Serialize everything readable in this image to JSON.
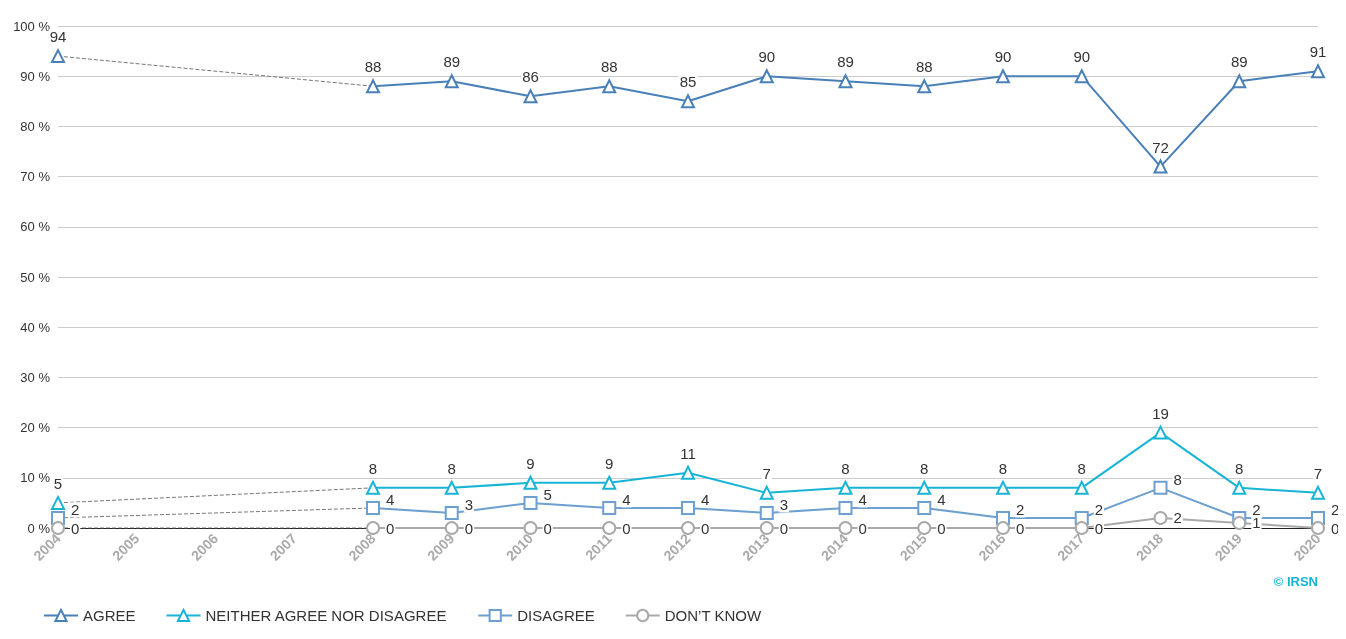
{
  "chart_data": {
    "type": "line",
    "categories": [
      "2004",
      "2005",
      "2006",
      "2007",
      "2008",
      "2009",
      "2010",
      "2011",
      "2012",
      "2013",
      "2014",
      "2015",
      "2016",
      "2017",
      "2018",
      "2019",
      "2020"
    ],
    "series": [
      {
        "name": "AGREE",
        "color": "#4a80b8",
        "marker": "triangle",
        "values": [
          94,
          null,
          null,
          null,
          88,
          89,
          86,
          88,
          85,
          90,
          89,
          88,
          90,
          90,
          72,
          89,
          91
        ]
      },
      {
        "name": "NEITHER AGREE NOR DISAGREE",
        "color": "#18b4d6",
        "marker": "triangle",
        "values": [
          5,
          null,
          null,
          null,
          8,
          8,
          9,
          9,
          11,
          7,
          8,
          8,
          8,
          8,
          19,
          8,
          7
        ]
      },
      {
        "name": "DISAGREE",
        "color": "#6d9fcf",
        "marker": "square",
        "values": [
          2,
          null,
          null,
          null,
          4,
          3,
          5,
          4,
          4,
          3,
          4,
          4,
          2,
          2,
          8,
          2,
          2
        ]
      },
      {
        "name": "DON’T KNOW",
        "color": "#a9a9a9",
        "marker": "circle",
        "values": [
          0,
          null,
          null,
          null,
          0,
          0,
          0,
          0,
          0,
          0,
          0,
          0,
          0,
          0,
          2,
          1,
          0
        ]
      },
      {
        "type": "line",
        "line_style": "dashed",
        "color": "#777777",
        "value_labels": [
          null,
          null,
          null,
          null,
          null,
          null,
          null,
          null,
          null,
          null,
          null,
          null,
          null,
          null,
          null,
          null,
          null
        ],
        "values": [
          94,
          null,
          null,
          null,
          88,
          null,
          null,
          null,
          null,
          null,
          null,
          null,
          null,
          null,
          null,
          null,
          null
        ]
      },
      {
        "type": "line",
        "line_style": "dashed",
        "color": "#777777",
        "value_labels": [
          null,
          null,
          null,
          null,
          null,
          null,
          null,
          null,
          null,
          null,
          null,
          null,
          null,
          null,
          null,
          null,
          null
        ],
        "values": [
          5,
          null,
          null,
          null,
          8,
          null,
          null,
          null,
          null,
          null,
          null,
          null,
          null,
          null,
          null,
          null,
          null
        ]
      },
      {
        "type": "line",
        "line_style": "dashed",
        "color": "#777777",
        "value_labels": [
          null,
          null,
          null,
          null,
          null,
          null,
          null,
          null,
          null,
          null,
          null,
          null,
          null,
          null,
          null,
          null,
          null
        ],
        "values": [
          2,
          null,
          null,
          null,
          4,
          null,
          null,
          null,
          null,
          null,
          null,
          null,
          null,
          null,
          null,
          null,
          null
        ]
      },
      {
        "type": "line",
        "line_style": "dashed",
        "color": "#777777",
        "value_labels": [
          null,
          null,
          null,
          null,
          null,
          null,
          null,
          null,
          null,
          null,
          null,
          null,
          null,
          null,
          null,
          null,
          null
        ],
        "values": [
          0,
          null,
          null,
          null,
          0,
          null,
          null,
          null,
          null,
          null,
          null,
          null,
          null,
          null,
          null,
          null,
          null
        ]
      }
    ],
    "ylim": [
      0,
      100
    ],
    "yticks": [
      {
        "value": 0,
        "label": "0 %"
      },
      {
        "value": 10,
        "label": "10 %"
      },
      {
        "value": 20,
        "label": "20 %"
      },
      {
        "value": 30,
        "label": "30 %"
      },
      {
        "value": 40,
        "label": "40 %"
      },
      {
        "value": 50,
        "label": "50 %"
      },
      {
        "value": 60,
        "label": "60 %"
      },
      {
        "value": 70,
        "label": "70 %"
      },
      {
        "value": 80,
        "label": "80 %"
      },
      {
        "value": 90,
        "label": "90 %"
      },
      {
        "value": 100,
        "label": "100 %"
      }
    ],
    "grid": "y",
    "legend": "bottom left",
    "data_labels": true,
    "annotations": [
      "© IRSN"
    ]
  }
}
